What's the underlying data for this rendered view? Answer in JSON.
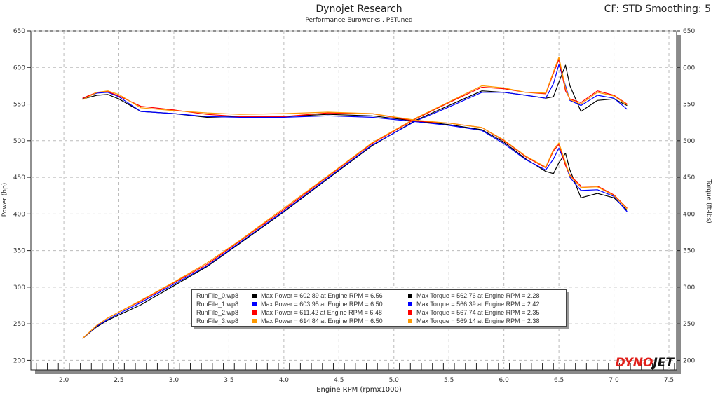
{
  "header": {
    "title": "Dynojet Research",
    "subtitle": "Performance Eurowerks . PETuned",
    "correction": "CF: STD Smoothing: 5"
  },
  "brand_logo": "DYNOJET",
  "chart_data": {
    "type": "line",
    "xlabel": "Engine RPM (rpmx1000)",
    "ylabel": "Power (hp)",
    "y2label": "Torque (ft-lbs)",
    "xlim": [
      1.7,
      7.57
    ],
    "ylim": [
      187,
      650
    ],
    "y2lim": [
      187,
      650
    ],
    "xticks": [
      "2.0",
      "2.5",
      "3.0",
      "3.5",
      "4.0",
      "4.5",
      "5.0",
      "5.5",
      "6.0",
      "6.5",
      "7.0",
      "7.5"
    ],
    "yticks": [
      "200",
      "250",
      "300",
      "350",
      "400",
      "450",
      "500",
      "550",
      "600",
      "650"
    ],
    "grid": true,
    "x": [
      2.17,
      2.3,
      2.4,
      2.5,
      2.7,
      3.0,
      3.3,
      3.6,
      4.0,
      4.4,
      4.8,
      5.2,
      5.5,
      5.8,
      6.0,
      6.2,
      6.38,
      6.45,
      6.5,
      6.56,
      6.6,
      6.7,
      6.85,
      7.0,
      7.12
    ],
    "series": [
      {
        "name": "RunFile_0.wp8",
        "color": "#000000",
        "power": [
          230,
          246,
          255,
          262,
          276,
          302,
          328,
          360,
          403,
          448,
          493,
          528,
          548,
          568,
          566,
          562,
          558,
          560,
          580,
          603,
          575,
          540,
          555,
          557,
          548
        ],
        "torque": [
          557,
          562,
          563,
          557,
          540,
          537,
          532,
          533,
          533,
          536,
          534,
          527,
          522,
          515,
          498,
          475,
          458,
          455,
          470,
          483,
          460,
          422,
          428,
          422,
          405
        ],
        "max_power": "Max Power = 602.89 at Engine RPM = 6.56",
        "max_torque": "Max Torque = 562.76 at Engine RPM = 2.28"
      },
      {
        "name": "RunFile_1.wp8",
        "color": "#0000ff",
        "power": [
          230,
          247,
          256,
          264,
          279,
          304,
          329,
          361,
          404,
          449,
          494,
          527,
          546,
          566,
          566,
          562,
          558,
          578,
          604,
          575,
          555,
          548,
          562,
          558,
          543
        ],
        "torque": [
          558,
          565,
          566,
          560,
          540,
          537,
          533,
          532,
          532,
          534,
          532,
          526,
          521,
          514,
          496,
          474,
          460,
          475,
          490,
          468,
          450,
          432,
          433,
          424,
          403
        ],
        "max_power": "Max Power = 603.95 at Engine RPM = 6.50",
        "max_torque": "Max Torque = 566.39 at Engine RPM = 2.42"
      },
      {
        "name": "RunFile_2.wp8",
        "color": "#ff0000",
        "power": [
          230,
          248,
          258,
          266,
          281,
          306,
          331,
          363,
          406,
          451,
          496,
          530,
          552,
          573,
          571,
          566,
          564,
          592,
          611,
          568,
          557,
          552,
          568,
          562,
          550
        ],
        "torque": [
          558,
          566,
          567,
          561,
          547,
          542,
          536,
          533,
          533,
          538,
          537,
          527,
          524,
          518,
          500,
          478,
          463,
          486,
          495,
          466,
          453,
          438,
          438,
          426,
          408
        ],
        "max_power": "Max Power = 611.42 at Engine RPM = 6.48",
        "max_torque": "Max Torque = 567.74 at Engine RPM = 2.35"
      },
      {
        "name": "RunFile_3.wp8",
        "color": "#ff9900",
        "power": [
          230,
          248,
          258,
          266,
          282,
          307,
          333,
          364,
          408,
          452,
          497,
          531,
          553,
          575,
          572,
          566,
          565,
          594,
          614,
          572,
          556,
          550,
          566,
          561,
          549
        ],
        "torque": [
          556,
          566,
          568,
          563,
          545,
          541,
          538,
          536,
          537,
          539,
          537,
          528,
          524,
          518,
          501,
          479,
          464,
          488,
          497,
          470,
          452,
          436,
          437,
          425,
          407
        ],
        "max_power": "Max Power = 614.84 at Engine RPM = 6.50",
        "max_torque": "Max Torque = 569.14 at Engine RPM = 2.38"
      }
    ]
  }
}
